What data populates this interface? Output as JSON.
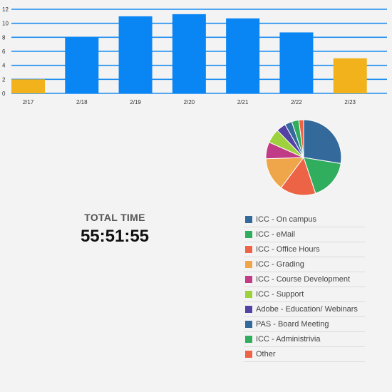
{
  "chart_data": [
    {
      "type": "bar",
      "categories": [
        "2/17",
        "2/18",
        "2/19",
        "2/20",
        "2/21",
        "2/22",
        "2/23"
      ],
      "values": [
        2,
        8,
        11,
        11.3,
        10.7,
        8.7,
        5
      ],
      "ylim": [
        0,
        12
      ],
      "yticks": [
        0,
        2,
        4,
        6,
        8,
        10,
        12
      ],
      "grid": true,
      "bar_colors": [
        "#f1b21c",
        "#0a86f4",
        "#0a86f4",
        "#0a86f4",
        "#0a86f4",
        "#0a86f4",
        "#f1b21c"
      ]
    },
    {
      "type": "pie",
      "categories": [
        "ICC - On campus",
        "ICC - eMail",
        "ICC - Office Hours",
        "ICC - Grading",
        "ICC - Course Development",
        "ICC - Support",
        "Adobe - Education/ Webinars",
        "PAS - Board Meeting",
        "ICC - Administrivia",
        "Other"
      ],
      "values": [
        27,
        17,
        15,
        14,
        7,
        6,
        4,
        3,
        3,
        2
      ],
      "colors": [
        "#336a9b",
        "#31ad5e",
        "#ec6346",
        "#efa64a",
        "#c03c87",
        "#9ed13e",
        "#5441a4",
        "#336a9b",
        "#31ad5e",
        "#ec6346"
      ]
    }
  ],
  "total": {
    "label": "TOTAL TIME",
    "value": "55:51:55"
  }
}
